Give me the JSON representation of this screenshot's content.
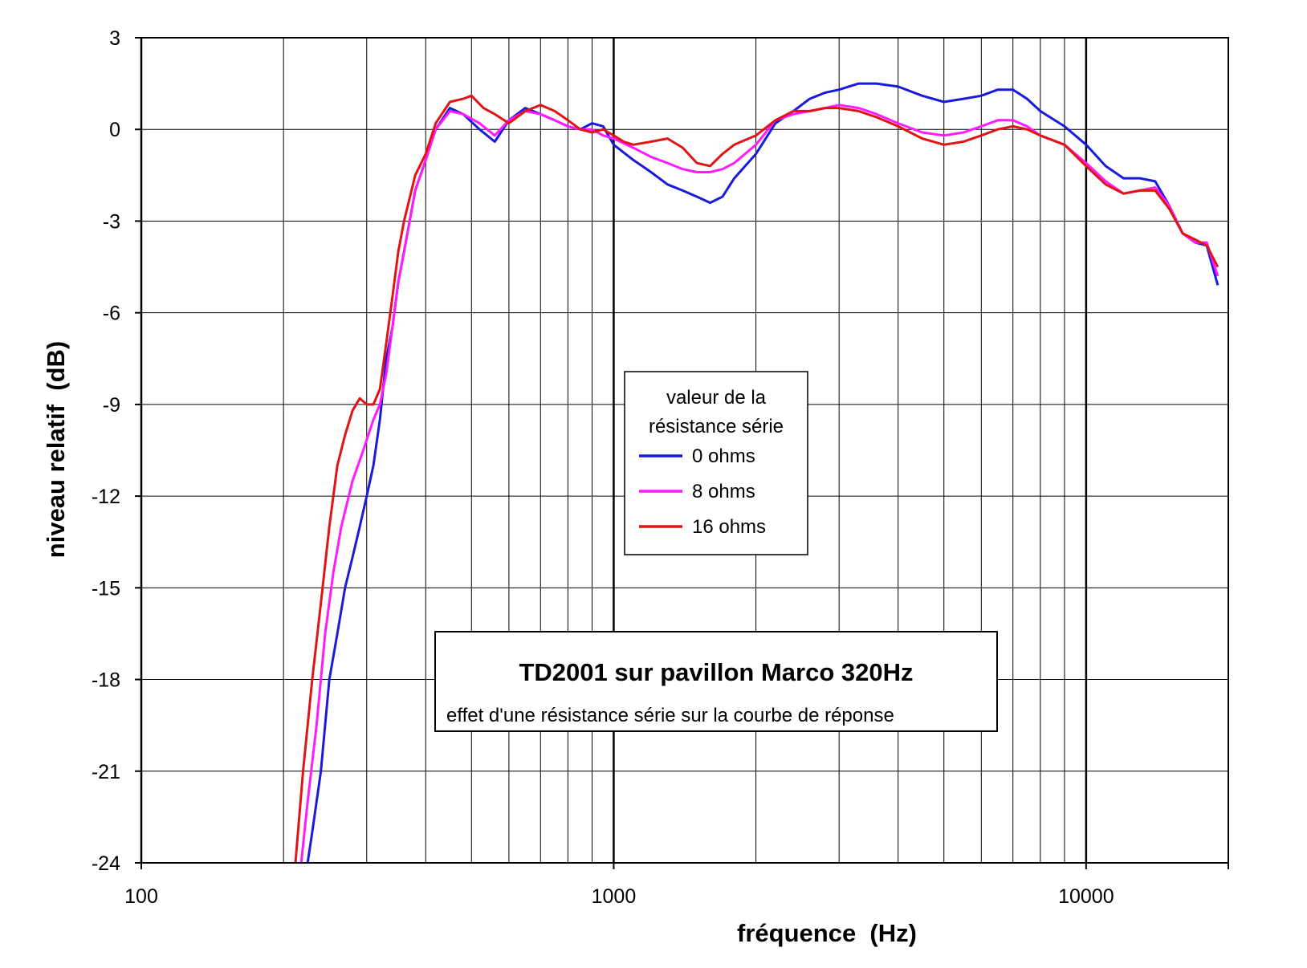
{
  "chart_data": {
    "type": "line",
    "title": "TD2001 sur pavillon Marco 320Hz",
    "subtitle": "effet d'une résistance série sur la courbe de réponse",
    "xlabel": "fréquence  (Hz)",
    "ylabel": "niveau relatif  (dB)",
    "xscale": "log",
    "xlim": [
      100,
      20000
    ],
    "ylim": [
      -24,
      3
    ],
    "x_tick_labels": [
      "100",
      "1000",
      "10000"
    ],
    "y_tick_labels": [
      "3",
      "0",
      "-3",
      "-6",
      "-9",
      "-12",
      "-15",
      "-18",
      "-21",
      "-24"
    ],
    "grid": true,
    "legend": {
      "title_line1": "valeur de la",
      "title_line2": "résistance série",
      "placement": "center"
    },
    "series": [
      {
        "name": "0 ohms",
        "color": "#1a1adc",
        "x": [
          225,
          230,
          240,
          250,
          260,
          270,
          280,
          290,
          300,
          310,
          320,
          330,
          340,
          350,
          360,
          380,
          400,
          420,
          450,
          480,
          520,
          560,
          600,
          650,
          700,
          750,
          800,
          850,
          900,
          950,
          1000,
          1100,
          1200,
          1300,
          1400,
          1500,
          1600,
          1700,
          1800,
          2000,
          2200,
          2400,
          2600,
          2800,
          3000,
          3300,
          3600,
          4000,
          4500,
          5000,
          5500,
          6000,
          6500,
          7000,
          7500,
          8000,
          9000,
          10000,
          11000,
          12000,
          13000,
          14000,
          15000,
          16000,
          17000,
          18000,
          19000
        ],
        "y": [
          -24,
          -23,
          -21,
          -18,
          -16.5,
          -15,
          -14,
          -13,
          -12,
          -11,
          -9.5,
          -7.5,
          -6.5,
          -5,
          -4,
          -2,
          -1,
          0,
          0.7,
          0.5,
          0,
          -0.4,
          0.3,
          0.7,
          0.5,
          0.3,
          0.1,
          0,
          0.2,
          0.1,
          -0.5,
          -1,
          -1.4,
          -1.8,
          -2,
          -2.2,
          -2.4,
          -2.2,
          -1.6,
          -0.8,
          0.2,
          0.6,
          1.0,
          1.2,
          1.3,
          1.5,
          1.5,
          1.4,
          1.1,
          0.9,
          1.0,
          1.1,
          1.3,
          1.3,
          1.0,
          0.6,
          0.1,
          -0.5,
          -1.2,
          -1.6,
          -1.6,
          -1.7,
          -2.5,
          -3.4,
          -3.7,
          -3.8,
          -5.1
        ]
      },
      {
        "name": "8 ohms",
        "color": "#ff1aff",
        "x": [
          218,
          225,
          235,
          245,
          255,
          265,
          280,
          295,
          310,
          320,
          330,
          340,
          350,
          360,
          380,
          400,
          420,
          450,
          480,
          520,
          560,
          600,
          650,
          700,
          750,
          800,
          850,
          900,
          950,
          1000,
          1100,
          1200,
          1300,
          1400,
          1500,
          1600,
          1700,
          1800,
          2000,
          2200,
          2400,
          2600,
          2800,
          3000,
          3300,
          3600,
          4000,
          4500,
          5000,
          5500,
          6000,
          6500,
          7000,
          7500,
          8000,
          9000,
          10000,
          11000,
          12000,
          13000,
          14000,
          15000,
          16000,
          17000,
          18000,
          19000
        ],
        "y": [
          -24,
          -22,
          -19.5,
          -16.5,
          -14.5,
          -13,
          -11.5,
          -10.5,
          -9.5,
          -9,
          -8,
          -6.5,
          -5,
          -4,
          -2,
          -1,
          0,
          0.6,
          0.5,
          0.2,
          -0.2,
          0.3,
          0.6,
          0.5,
          0.3,
          0.1,
          0,
          0,
          -0.2,
          -0.3,
          -0.6,
          -0.9,
          -1.1,
          -1.3,
          -1.4,
          -1.4,
          -1.3,
          -1.1,
          -0.5,
          0.3,
          0.5,
          0.6,
          0.7,
          0.8,
          0.7,
          0.5,
          0.2,
          -0.1,
          -0.2,
          -0.1,
          0.1,
          0.3,
          0.3,
          0.1,
          -0.2,
          -0.5,
          -1.1,
          -1.7,
          -2.1,
          -2,
          -1.9,
          -2.5,
          -3.4,
          -3.7,
          -3.7,
          -4.8
        ]
      },
      {
        "name": "16 ohms",
        "color": "#e01414",
        "x": [
          212,
          220,
          230,
          240,
          250,
          260,
          270,
          280,
          290,
          300,
          310,
          320,
          330,
          340,
          350,
          360,
          380,
          400,
          420,
          450,
          480,
          500,
          530,
          560,
          600,
          650,
          700,
          750,
          800,
          850,
          900,
          950,
          1000,
          1050,
          1100,
          1200,
          1300,
          1400,
          1500,
          1600,
          1700,
          1800,
          2000,
          2200,
          2400,
          2600,
          2800,
          3000,
          3300,
          3600,
          4000,
          4500,
          5000,
          5500,
          6000,
          6500,
          7000,
          7500,
          8000,
          9000,
          10000,
          11000,
          12000,
          13000,
          14000,
          15000,
          16000,
          17000,
          18000,
          19000
        ],
        "y": [
          -24,
          -21,
          -18,
          -15.5,
          -13,
          -11,
          -10,
          -9.2,
          -8.8,
          -9,
          -9,
          -8.5,
          -7,
          -5.5,
          -4,
          -3,
          -1.5,
          -0.8,
          0.2,
          0.9,
          1.0,
          1.1,
          0.7,
          0.5,
          0.2,
          0.6,
          0.8,
          0.6,
          0.3,
          0,
          -0.1,
          0,
          -0.2,
          -0.4,
          -0.5,
          -0.4,
          -0.3,
          -0.6,
          -1.1,
          -1.2,
          -0.8,
          -0.5,
          -0.2,
          0.3,
          0.6,
          0.6,
          0.7,
          0.7,
          0.6,
          0.4,
          0.1,
          -0.3,
          -0.5,
          -0.4,
          -0.2,
          0,
          0.1,
          0,
          -0.2,
          -0.5,
          -1.2,
          -1.8,
          -2.1,
          -2,
          -2,
          -2.6,
          -3.4,
          -3.6,
          -3.8,
          -4.5
        ]
      }
    ]
  }
}
